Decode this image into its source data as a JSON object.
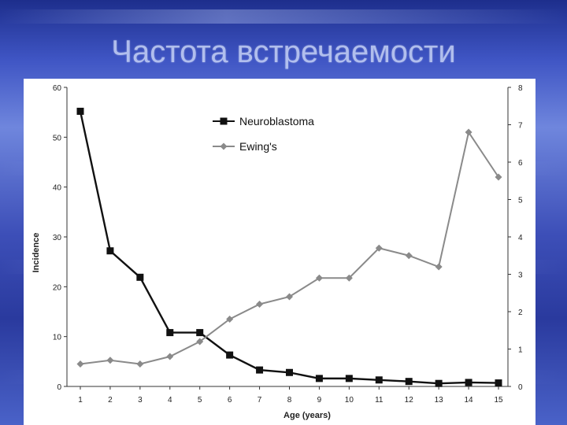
{
  "slide": {
    "title": "Частота встречаемости"
  },
  "colors": {
    "neuroblastoma": "#111111",
    "ewings": "#8a8a8a",
    "axis": "#333333"
  },
  "chart_data": {
    "type": "line",
    "title": "",
    "xlabel": "Age (years)",
    "ylabel": "Incidence",
    "x": [
      1,
      2,
      3,
      4,
      5,
      6,
      7,
      8,
      9,
      10,
      11,
      12,
      13,
      14,
      15
    ],
    "ylim": [
      0,
      60
    ],
    "y_ticks": [
      0,
      10,
      20,
      30,
      40,
      50,
      60
    ],
    "y2lim": [
      0,
      8
    ],
    "y2_ticks": [
      0,
      1,
      2,
      3,
      4,
      5,
      6,
      7,
      8
    ],
    "legend_position": "top-center",
    "grid": false,
    "series": [
      {
        "name": "Neuroblastoma",
        "axis": "left",
        "marker": "square",
        "values": [
          55.2,
          27.2,
          21.9,
          10.8,
          10.8,
          6.3,
          3.3,
          2.8,
          1.6,
          1.6,
          1.3,
          1.0,
          0.6,
          0.8,
          0.7
        ]
      },
      {
        "name": "Ewing's",
        "axis": "right",
        "marker": "diamond",
        "values": [
          0.6,
          0.7,
          0.6,
          0.8,
          1.2,
          1.8,
          2.2,
          2.4,
          2.9,
          2.9,
          3.7,
          3.5,
          3.2,
          6.8,
          5.6
        ]
      }
    ]
  }
}
